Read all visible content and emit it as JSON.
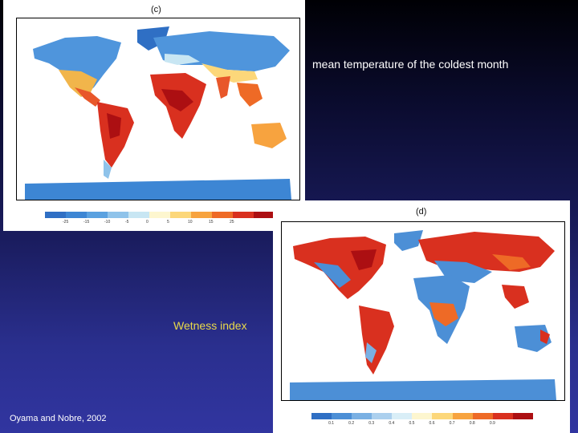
{
  "panel_c": {
    "label": "(c)",
    "colorbar_colors": [
      "#2f6fc4",
      "#3d86d4",
      "#5aa1e0",
      "#8fc3ea",
      "#c8e6f3",
      "#fdf6cf",
      "#fcd77a",
      "#f7a33f",
      "#ee6a26",
      "#d9301f",
      "#ac0f12"
    ],
    "colorbar_ticks": [
      "-25",
      "-15",
      "-10",
      "-5",
      "0",
      "5",
      "10",
      "15",
      "25"
    ]
  },
  "panel_d": {
    "label": "(d)",
    "colorbar_colors": [
      "#2f6fc4",
      "#4c8fd6",
      "#7ab0e3",
      "#acd0ee",
      "#d9eef7",
      "#fdf6cf",
      "#fcd77a",
      "#f7a33f",
      "#ee6a26",
      "#d9301f",
      "#ac0f12"
    ],
    "colorbar_ticks": [
      "0.1",
      "0.2",
      "0.3",
      "0.4",
      "0.5",
      "0.6",
      "0.7",
      "0.8",
      "0.9"
    ]
  },
  "caption_mean": "mean temperature of the coldest month",
  "caption_wetness": "Wetness index",
  "citation": "Oyama and Nobre, 2002"
}
